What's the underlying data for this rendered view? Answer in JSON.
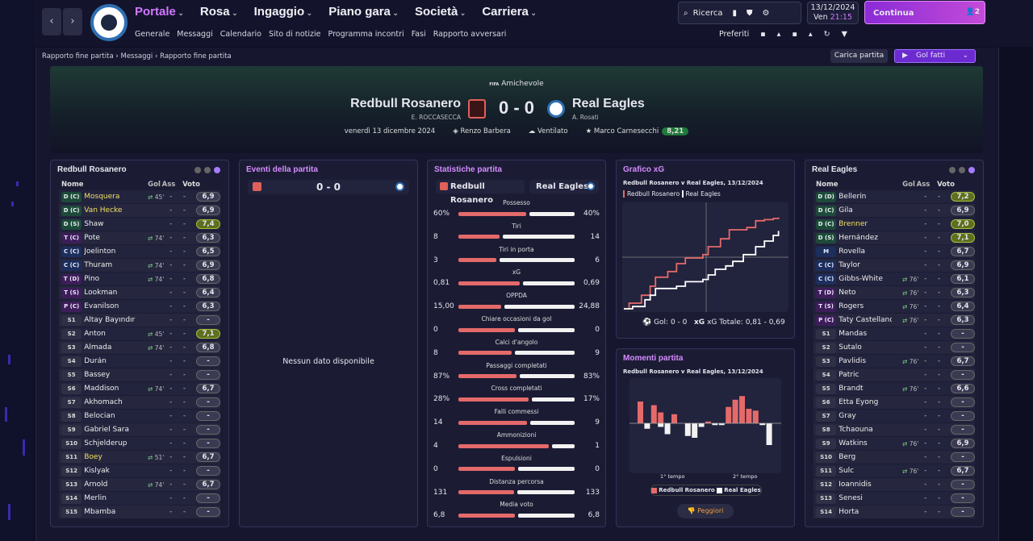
{
  "nav": {
    "main": [
      "Portale",
      "Rosa",
      "Ingaggio",
      "Piano gara",
      "Società",
      "Carriera"
    ],
    "sub": [
      "Generale",
      "Messaggi",
      "Calendario",
      "Sito di notizie",
      "Programma incontri",
      "Fasi",
      "Rapporto avversari"
    ],
    "search_label": "Ricerca",
    "date": "13/12/2024",
    "day": "Ven",
    "time": "21:15",
    "continue_label": "Continua",
    "continue_badge": "2",
    "favorites_label": "Preferiti"
  },
  "breadcrumb": [
    "Rapporto fine partita",
    "Messaggi",
    "Rapporto fine partita"
  ],
  "actions": {
    "load": "Carica partita",
    "goals": "Gol fatti"
  },
  "match": {
    "competition": "Amichevole",
    "competition_badge": "FIFA",
    "home": "Redbull Rosanero",
    "home_coach": "E. ROCCASECCA",
    "away": "Real Eagles",
    "away_coach": "A. Rosati",
    "score": "0 - 0",
    "date": "venerdì 13 dicembre 2024",
    "referee": "Renzo Barbera",
    "weather": "Ventilato",
    "motm": "Marco Carnesecchi",
    "motm_rating": "8,21"
  },
  "columns": {
    "name": "Nome",
    "gol": "Gol",
    "ass": "Ass",
    "voto": "Voto"
  },
  "home_players": [
    {
      "pos": "D (C)",
      "name": "Mosquera",
      "sub": "45'",
      "gol": "-",
      "ass": "-",
      "voto": "6,9",
      "hl": true
    },
    {
      "pos": "D (C)",
      "name": "Van Hecke",
      "sub": "",
      "gol": "-",
      "ass": "-",
      "voto": "6,9",
      "hl": true
    },
    {
      "pos": "D (S)",
      "name": "Shaw",
      "sub": "",
      "gol": "-",
      "ass": "-",
      "voto": "7,4",
      "hi": true
    },
    {
      "pos": "T (C)",
      "name": "Pote",
      "sub": "74'",
      "gol": "-",
      "ass": "-",
      "voto": "6,3"
    },
    {
      "pos": "C (C)",
      "name": "Joelinton",
      "sub": "",
      "gol": "-",
      "ass": "-",
      "voto": "6,5"
    },
    {
      "pos": "C (C)",
      "name": "Thuram",
      "sub": "74'",
      "gol": "-",
      "ass": "-",
      "voto": "6,9"
    },
    {
      "pos": "T (D)",
      "name": "Pino",
      "sub": "74'",
      "gol": "-",
      "ass": "-",
      "voto": "6,8"
    },
    {
      "pos": "T (S)",
      "name": "Lookman",
      "sub": "",
      "gol": "-",
      "ass": "-",
      "voto": "6,4"
    },
    {
      "pos": "P (C)",
      "name": "Evanilson",
      "sub": "",
      "gol": "-",
      "ass": "-",
      "voto": "6,3"
    },
    {
      "pos": "S1",
      "name": "Altay Bayındır",
      "sub": "",
      "gol": "-",
      "ass": "-",
      "voto": "-"
    },
    {
      "pos": "S2",
      "name": "Anton",
      "sub": "45'",
      "gol": "-",
      "ass": "-",
      "voto": "7,1",
      "hi": true
    },
    {
      "pos": "S3",
      "name": "Almada",
      "sub": "74'",
      "gol": "-",
      "ass": "-",
      "voto": "6,8"
    },
    {
      "pos": "S4",
      "name": "Durán",
      "sub": "",
      "gol": "-",
      "ass": "-",
      "voto": "-"
    },
    {
      "pos": "S5",
      "name": "Bassey",
      "sub": "",
      "gol": "-",
      "ass": "-",
      "voto": "-"
    },
    {
      "pos": "S6",
      "name": "Maddison",
      "sub": "74'",
      "gol": "-",
      "ass": "-",
      "voto": "6,7"
    },
    {
      "pos": "S7",
      "name": "Akhomach",
      "sub": "",
      "gol": "-",
      "ass": "-",
      "voto": "-"
    },
    {
      "pos": "S8",
      "name": "Belocian",
      "sub": "",
      "gol": "-",
      "ass": "-",
      "voto": "-"
    },
    {
      "pos": "S9",
      "name": "Gabriel Sara",
      "sub": "",
      "gol": "-",
      "ass": "-",
      "voto": "-"
    },
    {
      "pos": "S10",
      "name": "Schjelderup",
      "sub": "",
      "gol": "-",
      "ass": "-",
      "voto": "-"
    },
    {
      "pos": "S11",
      "name": "Boey",
      "sub": "51'",
      "gol": "-",
      "ass": "-",
      "voto": "6,7",
      "hl": true
    },
    {
      "pos": "S12",
      "name": "Kislyak",
      "sub": "",
      "gol": "-",
      "ass": "-",
      "voto": "-"
    },
    {
      "pos": "S13",
      "name": "Arnold",
      "sub": "74'",
      "gol": "-",
      "ass": "-",
      "voto": "6,7"
    },
    {
      "pos": "S14",
      "name": "Merlin",
      "sub": "",
      "gol": "-",
      "ass": "-",
      "voto": "-"
    },
    {
      "pos": "S15",
      "name": "Mbamba",
      "sub": "",
      "gol": "-",
      "ass": "-",
      "voto": "-"
    }
  ],
  "away_players": [
    {
      "pos": "D (D)",
      "name": "Bellerín",
      "sub": "",
      "gol": "-",
      "ass": "-",
      "voto": "7,2",
      "hi": true
    },
    {
      "pos": "D (C)",
      "name": "Gila",
      "sub": "",
      "gol": "-",
      "ass": "-",
      "voto": "6,9"
    },
    {
      "pos": "D (C)",
      "name": "Brenner",
      "sub": "",
      "gol": "-",
      "ass": "-",
      "voto": "7,0",
      "hi": true,
      "hl": true
    },
    {
      "pos": "D (S)",
      "name": "Hernández",
      "sub": "",
      "gol": "-",
      "ass": "-",
      "voto": "7,1",
      "hi": true
    },
    {
      "pos": "M",
      "name": "Rovella",
      "sub": "",
      "gol": "-",
      "ass": "-",
      "voto": "6,7"
    },
    {
      "pos": "C (C)",
      "name": "Taylor",
      "sub": "",
      "gol": "-",
      "ass": "-",
      "voto": "6,9"
    },
    {
      "pos": "C (C)",
      "name": "Gibbs-White",
      "sub": "76'",
      "gol": "-",
      "ass": "-",
      "voto": "6,1"
    },
    {
      "pos": "T (D)",
      "name": "Neto",
      "sub": "76'",
      "gol": "-",
      "ass": "-",
      "voto": "6,3"
    },
    {
      "pos": "T (S)",
      "name": "Rogers",
      "sub": "76'",
      "gol": "-",
      "ass": "-",
      "voto": "6,4"
    },
    {
      "pos": "P (C)",
      "name": "Taty Castellanos",
      "sub": "76'",
      "gol": "-",
      "ass": "-",
      "voto": "6,3"
    },
    {
      "pos": "S1",
      "name": "Mandas",
      "sub": "",
      "gol": "-",
      "ass": "-",
      "voto": "-"
    },
    {
      "pos": "S2",
      "name": "Šutalo",
      "sub": "",
      "gol": "-",
      "ass": "-",
      "voto": "-"
    },
    {
      "pos": "S3",
      "name": "Pavlidis",
      "sub": "76'",
      "gol": "-",
      "ass": "-",
      "voto": "6,7"
    },
    {
      "pos": "S4",
      "name": "Patric",
      "sub": "",
      "gol": "-",
      "ass": "-",
      "voto": "-"
    },
    {
      "pos": "S5",
      "name": "Brandt",
      "sub": "76'",
      "gol": "-",
      "ass": "-",
      "voto": "6,6"
    },
    {
      "pos": "S6",
      "name": "Etta Eyong",
      "sub": "",
      "gol": "-",
      "ass": "-",
      "voto": "-"
    },
    {
      "pos": "S7",
      "name": "Gray",
      "sub": "",
      "gol": "-",
      "ass": "-",
      "voto": "-"
    },
    {
      "pos": "S8",
      "name": "Tchaouna",
      "sub": "",
      "gol": "-",
      "ass": "-",
      "voto": "-"
    },
    {
      "pos": "S9",
      "name": "Watkins",
      "sub": "76'",
      "gol": "-",
      "ass": "-",
      "voto": "6,9"
    },
    {
      "pos": "S10",
      "name": "Berg",
      "sub": "",
      "gol": "-",
      "ass": "-",
      "voto": "-"
    },
    {
      "pos": "S11",
      "name": "Šulc",
      "sub": "76'",
      "gol": "-",
      "ass": "-",
      "voto": "6,7"
    },
    {
      "pos": "S12",
      "name": "Ioannidis",
      "sub": "",
      "gol": "-",
      "ass": "-",
      "voto": "-"
    },
    {
      "pos": "S13",
      "name": "Senesi",
      "sub": "",
      "gol": "-",
      "ass": "-",
      "voto": "-"
    },
    {
      "pos": "S14",
      "name": "Horta",
      "sub": "",
      "gol": "-",
      "ass": "-",
      "voto": "-"
    }
  ],
  "events": {
    "title": "Eventi della partita",
    "score": "0 - 0",
    "empty": "Nessun dato disponibile"
  },
  "stats": {
    "title": "Statistiche partita",
    "rows": [
      {
        "label": "Possesso",
        "home": "60%",
        "away": "40%",
        "h": 60,
        "a": 40
      },
      {
        "label": "Tiri",
        "home": "8",
        "away": "14",
        "h": 8,
        "a": 14
      },
      {
        "label": "Tiri in porta",
        "home": "3",
        "away": "6",
        "h": 3,
        "a": 6
      },
      {
        "label": "xG",
        "home": "0,81",
        "away": "0,69",
        "h": 0.81,
        "a": 0.69
      },
      {
        "label": "OPPDA",
        "home": "15,00",
        "away": "24,88",
        "h": 15,
        "a": 24.88
      },
      {
        "label": "Chiare occasioni da gol",
        "home": "0",
        "away": "0",
        "h": 0,
        "a": 0
      },
      {
        "label": "Calci d'angolo",
        "home": "8",
        "away": "9",
        "h": 8,
        "a": 9
      },
      {
        "label": "Passaggi completati",
        "home": "87%",
        "away": "83%",
        "h": 87,
        "a": 83
      },
      {
        "label": "Cross completati",
        "home": "28%",
        "away": "17%",
        "h": 28,
        "a": 17
      },
      {
        "label": "Falli commessi",
        "home": "14",
        "away": "9",
        "h": 14,
        "a": 9
      },
      {
        "label": "Ammonizioni",
        "home": "4",
        "away": "1",
        "h": 4,
        "a": 1
      },
      {
        "label": "Espulsioni",
        "home": "0",
        "away": "0",
        "h": 0,
        "a": 0
      },
      {
        "label": "Distanza percorsa",
        "home": "131",
        "away": "133",
        "h": 131,
        "a": 133
      },
      {
        "label": "Media voto",
        "home": "6,8",
        "away": "6,8",
        "h": 6.8,
        "a": 6.8
      }
    ]
  },
  "xg": {
    "title": "Grafico xG",
    "subtitle": "Redbull Rosanero v Real Eagles, 13/12/2024",
    "legend_home": "Redbull Rosanero",
    "legend_away": "Real Eagles",
    "gol_label": "Gol: 0 - 0",
    "xg_label": "xG Totale: 0,81 - 0,69"
  },
  "moments": {
    "title": "Momenti partita",
    "subtitle": "Redbull Rosanero v Real Eagles, 13/12/2024",
    "first_half": "1° tempo",
    "second_half": "2° tempo",
    "legend_home": "Redbull Rosanero",
    "legend_away": "Real Eagles",
    "worst": "Peggiori"
  },
  "chart_data": [
    {
      "type": "line",
      "title": "Grafico xG",
      "x_range": [
        0,
        90
      ],
      "series": [
        {
          "name": "Redbull Rosanero",
          "color": "#e46a6a",
          "x": [
            0,
            3,
            10,
            15,
            18,
            25,
            30,
            35,
            45,
            48,
            55,
            60,
            70,
            75,
            80,
            85,
            88
          ],
          "y": [
            0,
            0.05,
            0.12,
            0.2,
            0.28,
            0.33,
            0.4,
            0.45,
            0.48,
            0.55,
            0.62,
            0.7,
            0.72,
            0.78,
            0.79,
            0.8,
            0.81
          ]
        },
        {
          "name": "Real Eagles",
          "color": "#ffffff",
          "x": [
            0,
            5,
            12,
            15,
            18,
            30,
            35,
            45,
            48,
            52,
            58,
            62,
            68,
            75,
            80,
            85,
            88
          ],
          "y": [
            0,
            0.02,
            0.08,
            0.12,
            0.18,
            0.2,
            0.24,
            0.26,
            0.3,
            0.35,
            0.38,
            0.42,
            0.48,
            0.55,
            0.6,
            0.65,
            0.69
          ]
        }
      ]
    },
    {
      "type": "bar",
      "title": "Momenti partita",
      "categories": [
        1,
        2,
        3,
        4,
        5,
        6,
        7,
        8,
        9,
        10,
        11,
        12,
        13,
        14,
        15,
        16,
        17,
        18,
        19,
        20
      ],
      "series": [
        {
          "name": "Redbull Rosanero",
          "values": [
            0.6,
            0.0,
            0.5,
            0.3,
            0.0,
            0.25,
            0.0,
            0.0,
            0.0,
            0.0,
            0.05,
            0.0,
            0.0,
            0.45,
            0.65,
            0.75,
            0.4,
            0.35,
            0.0,
            0.0
          ]
        },
        {
          "name": "Real Eagles",
          "values": [
            0.0,
            -0.15,
            0.0,
            -0.1,
            -0.3,
            0.0,
            0.0,
            -0.35,
            -0.4,
            -0.1,
            0.0,
            -0.05,
            -0.05,
            0.0,
            0.0,
            0.0,
            0.0,
            0.0,
            -0.05,
            -0.6
          ]
        }
      ]
    }
  ]
}
